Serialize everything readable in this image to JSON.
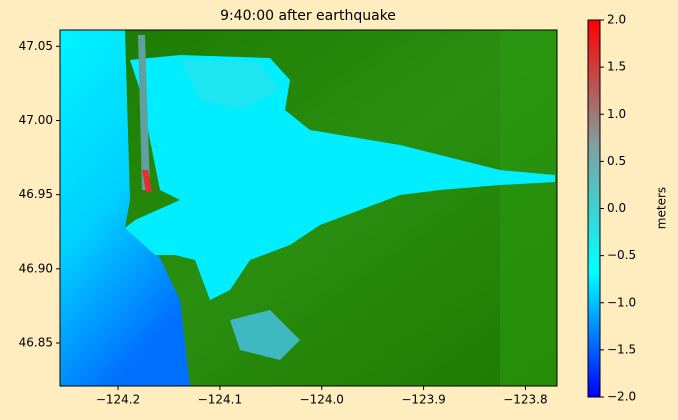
{
  "chart_data": {
    "type": "map",
    "title": "9:40:00 after earthquake",
    "xlim": [
      -124.257,
      -123.769
    ],
    "ylim": [
      46.821,
      47.061
    ],
    "xticks": [
      {
        "value": -124.2,
        "label": "−124.2"
      },
      {
        "value": -124.1,
        "label": "−124.1"
      },
      {
        "value": -124.0,
        "label": "−124.0"
      },
      {
        "value": -123.9,
        "label": "−123.9"
      },
      {
        "value": -123.8,
        "label": "−123.8"
      }
    ],
    "yticks": [
      {
        "value": 46.85,
        "label": "46.85"
      },
      {
        "value": 46.9,
        "label": "46.90"
      },
      {
        "value": 46.95,
        "label": "46.95"
      },
      {
        "value": 47.0,
        "label": "47.00"
      },
      {
        "value": 47.05,
        "label": "47.05"
      }
    ],
    "colorbar": {
      "label": "meters",
      "lim": [
        -2,
        2
      ],
      "colors": [
        "#0000ff",
        "#00ffff",
        "#7fa0a0",
        "#ff0000"
      ],
      "ticks": [
        {
          "value": -2,
          "label": "−2.0"
        },
        {
          "value": -1.5,
          "label": "−1.5"
        },
        {
          "value": -1,
          "label": "−1.0"
        },
        {
          "value": -0.5,
          "label": "−0.5"
        },
        {
          "value": 0,
          "label": "0.0"
        },
        {
          "value": 0.5,
          "label": "0.5"
        },
        {
          "value": 1,
          "label": "1.0"
        },
        {
          "value": 1.5,
          "label": "1.5"
        },
        {
          "value": 2,
          "label": "2.0"
        }
      ]
    }
  }
}
